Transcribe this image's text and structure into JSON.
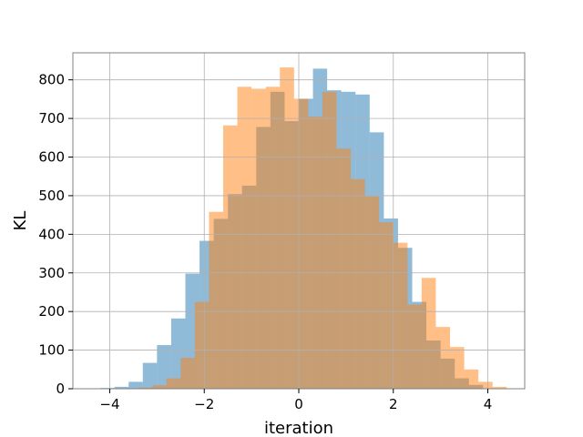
{
  "chart_data": {
    "type": "bar",
    "title": "",
    "xlabel": "iteration",
    "ylabel": "KL",
    "xlim": [
      -4.78,
      4.78
    ],
    "ylim": [
      0,
      870
    ],
    "xticks": [
      -4,
      -2,
      0,
      2,
      4
    ],
    "yticks": [
      0,
      100,
      200,
      300,
      400,
      500,
      600,
      700,
      800
    ],
    "grid": true,
    "legend": "none",
    "series": [
      {
        "color": "#1f77b4",
        "opacity": 0.5,
        "bins": [
          {
            "x0": -4.2,
            "x1": -3.9,
            "value": 2
          },
          {
            "x0": -3.9,
            "x1": -3.6,
            "value": 5
          },
          {
            "x0": -3.6,
            "x1": -3.3,
            "value": 18
          },
          {
            "x0": -3.3,
            "x1": -3.0,
            "value": 67
          },
          {
            "x0": -3.0,
            "x1": -2.7,
            "value": 113
          },
          {
            "x0": -2.7,
            "x1": -2.4,
            "value": 182
          },
          {
            "x0": -2.4,
            "x1": -2.1,
            "value": 298
          },
          {
            "x0": -2.1,
            "x1": -1.8,
            "value": 383
          },
          {
            "x0": -1.8,
            "x1": -1.5,
            "value": 440
          },
          {
            "x0": -1.5,
            "x1": -1.2,
            "value": 504
          },
          {
            "x0": -1.2,
            "x1": -0.9,
            "value": 526
          },
          {
            "x0": -0.9,
            "x1": -0.6,
            "value": 678
          },
          {
            "x0": -0.6,
            "x1": -0.3,
            "value": 769
          },
          {
            "x0": -0.3,
            "x1": 0.0,
            "value": 693
          },
          {
            "x0": 0.0,
            "x1": 0.3,
            "value": 751
          },
          {
            "x0": 0.3,
            "x1": 0.6,
            "value": 829
          },
          {
            "x0": 0.6,
            "x1": 0.9,
            "value": 773
          },
          {
            "x0": 0.9,
            "x1": 1.2,
            "value": 769
          },
          {
            "x0": 1.2,
            "x1": 1.5,
            "value": 762
          },
          {
            "x0": 1.5,
            "x1": 1.8,
            "value": 664
          },
          {
            "x0": 1.8,
            "x1": 2.1,
            "value": 441
          },
          {
            "x0": 2.1,
            "x1": 2.4,
            "value": 365
          },
          {
            "x0": 2.4,
            "x1": 2.7,
            "value": 225
          },
          {
            "x0": 2.7,
            "x1": 3.0,
            "value": 125
          },
          {
            "x0": 3.0,
            "x1": 3.3,
            "value": 78
          },
          {
            "x0": 3.3,
            "x1": 3.6,
            "value": 27
          },
          {
            "x0": 3.6,
            "x1": 3.9,
            "value": 10
          }
        ]
      },
      {
        "color": "#ff7f0e",
        "opacity": 0.5,
        "bins": [
          {
            "x0": -3.4,
            "x1": -3.1,
            "value": 3
          },
          {
            "x0": -3.1,
            "x1": -2.8,
            "value": 9
          },
          {
            "x0": -2.8,
            "x1": -2.5,
            "value": 27
          },
          {
            "x0": -2.5,
            "x1": -2.2,
            "value": 80
          },
          {
            "x0": -2.2,
            "x1": -1.9,
            "value": 225
          },
          {
            "x0": -1.9,
            "x1": -1.6,
            "value": 458
          },
          {
            "x0": -1.6,
            "x1": -1.3,
            "value": 682
          },
          {
            "x0": -1.3,
            "x1": -1.0,
            "value": 782
          },
          {
            "x0": -1.0,
            "x1": -0.7,
            "value": 777
          },
          {
            "x0": -0.7,
            "x1": -0.4,
            "value": 782
          },
          {
            "x0": -0.4,
            "x1": -0.1,
            "value": 832
          },
          {
            "x0": -0.1,
            "x1": 0.2,
            "value": 751
          },
          {
            "x0": 0.2,
            "x1": 0.5,
            "value": 705
          },
          {
            "x0": 0.5,
            "x1": 0.8,
            "value": 769
          },
          {
            "x0": 0.8,
            "x1": 1.1,
            "value": 622
          },
          {
            "x0": 1.1,
            "x1": 1.4,
            "value": 543
          },
          {
            "x0": 1.4,
            "x1": 1.7,
            "value": 498
          },
          {
            "x0": 1.7,
            "x1": 2.0,
            "value": 431
          },
          {
            "x0": 2.0,
            "x1": 2.3,
            "value": 378
          },
          {
            "x0": 2.3,
            "x1": 2.6,
            "value": 218
          },
          {
            "x0": 2.6,
            "x1": 2.9,
            "value": 287
          },
          {
            "x0": 2.9,
            "x1": 3.2,
            "value": 160
          },
          {
            "x0": 3.2,
            "x1": 3.5,
            "value": 108
          },
          {
            "x0": 3.5,
            "x1": 3.8,
            "value": 50
          },
          {
            "x0": 3.8,
            "x1": 4.1,
            "value": 18
          },
          {
            "x0": 4.1,
            "x1": 4.4,
            "value": 5
          }
        ]
      }
    ]
  }
}
